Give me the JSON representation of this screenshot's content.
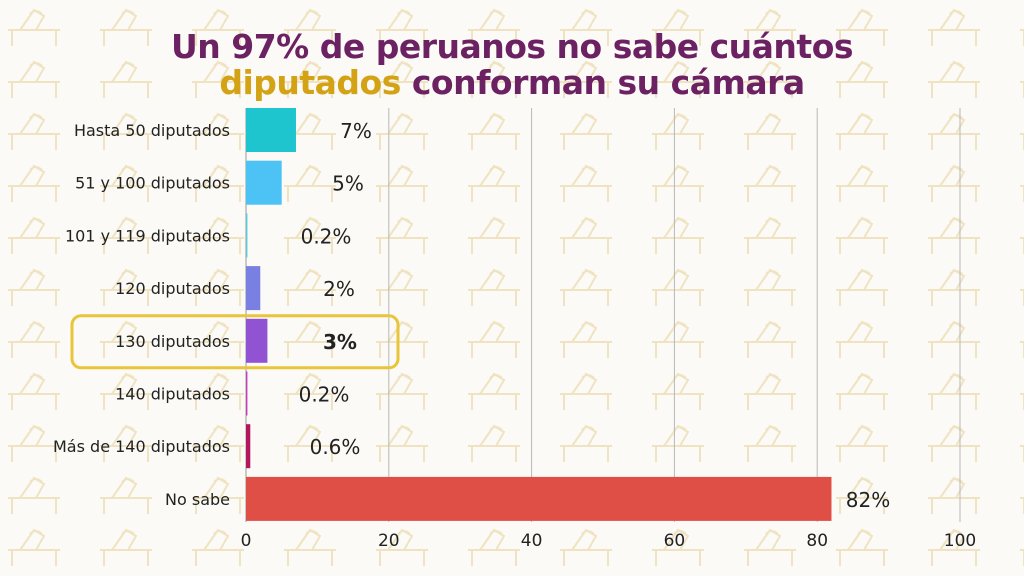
{
  "title": {
    "line1": "Un 97% de peruanos no sabe cuántos",
    "line2_highlight": "diputados",
    "line2_rest": " conforman su cámara"
  },
  "colors": {
    "title": "#6b2162",
    "highlight": "#d4a315",
    "box": "#e8c53a"
  },
  "chart_data": {
    "type": "bar",
    "orientation": "horizontal",
    "categories": [
      "Hasta 50 diputados",
      "51 y 100 diputados",
      "101 y 119 diputados",
      "120 diputados",
      "130 diputados",
      "140 diputados",
      "Más de 140 diputados",
      "No sabe"
    ],
    "values": [
      7,
      5,
      0.2,
      2,
      3,
      0.2,
      0.6,
      82
    ],
    "value_labels": [
      "7%",
      "5%",
      "0.2%",
      "2%",
      "3%",
      "0.2%",
      "0.6%",
      "82%"
    ],
    "bar_colors": [
      "#1ec5cf",
      "#4dc2f4",
      "#5cc8d8",
      "#7a80e2",
      "#9153d2",
      "#c23fc0",
      "#b3155f",
      "#e04f45"
    ],
    "highlighted_category": "130 diputados",
    "xlim": [
      0,
      100
    ],
    "xticks": [
      "0",
      "20",
      "40",
      "60",
      "80",
      "100"
    ],
    "grid": "vertical",
    "xlabel": "",
    "ylabel": ""
  }
}
